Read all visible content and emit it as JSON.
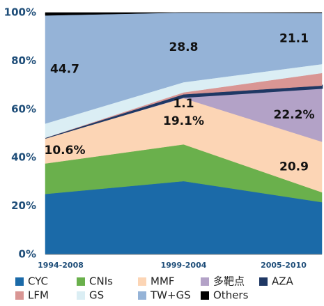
{
  "chart_data": {
    "type": "stacked-area",
    "categories": [
      "1994-2008",
      "1999-2004",
      "2005-2010"
    ],
    "ylim": [
      0,
      100
    ],
    "yticks": [
      {
        "value": 0,
        "label": "0%"
      },
      {
        "value": 20,
        "label": "20%"
      },
      {
        "value": 40,
        "label": "40%"
      },
      {
        "value": 60,
        "label": "60%"
      },
      {
        "value": 80,
        "label": "80%"
      },
      {
        "value": 100,
        "label": "100%"
      }
    ],
    "series": [
      {
        "name": "CYC",
        "color": "#1b6aa8",
        "values": [
          25,
          30.3,
          21.6
        ]
      },
      {
        "name": "CNIs",
        "color": "#6ab04c",
        "values": [
          12.6,
          15.2,
          4.1
        ]
      },
      {
        "name": "MMF",
        "color": "#fcd5b5",
        "values": [
          10.6,
          19.1,
          20.9
        ],
        "value_labels": [
          "10.6%",
          "19.1%",
          "20.9"
        ]
      },
      {
        "name": "多靶点",
        "color": "#b3a2c7",
        "values": [
          0,
          0.5,
          22.2
        ],
        "value_labels": [
          null,
          null,
          "22.2%"
        ]
      },
      {
        "name": "AZA",
        "color": "#1f3864",
        "values": [
          0,
          1.1,
          1
        ],
        "value_labels": [
          null,
          "1.1",
          null
        ]
      },
      {
        "name": "LFM",
        "color": "#d99694",
        "values": [
          0,
          0.8,
          5.2
        ]
      },
      {
        "name": "GS",
        "color": "#dbeef4",
        "values": [
          5.9,
          4.2,
          3.7
        ]
      },
      {
        "name": "TW+GS",
        "color": "#95b3d7",
        "values": [
          44.7,
          28.8,
          21.1
        ],
        "value_labels": [
          "44.7",
          "28.8",
          "21.1"
        ]
      },
      {
        "name": "Others",
        "color": "#000000",
        "values": [
          1.2,
          0,
          0.2
        ]
      }
    ]
  }
}
